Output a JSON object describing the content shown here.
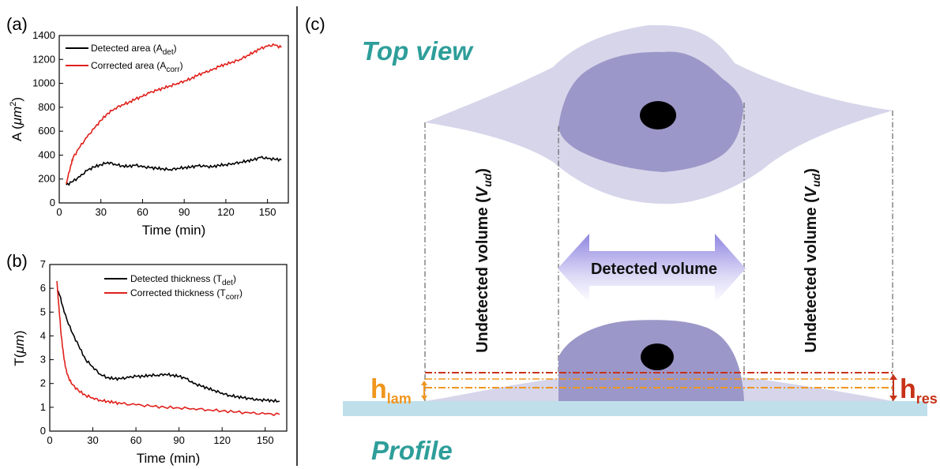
{
  "panel_a": {
    "label": "(a)",
    "chart_data": {
      "type": "line",
      "xlabel": "Time (min)",
      "ylabel_main": "A (",
      "ylabel_unit": "μm",
      "ylabel_sup": "2",
      "ylabel_close": ")",
      "xlim": [
        0,
        165
      ],
      "ylim": [
        0,
        1400
      ],
      "xticks": [
        0,
        30,
        60,
        90,
        120,
        150
      ],
      "yticks": [
        0,
        200,
        400,
        600,
        800,
        1000,
        1200,
        1400
      ],
      "legend_position": "top-left",
      "series": [
        {
          "legend_main": "Detected area (A",
          "legend_sub": "det",
          "legend_close": ")",
          "color": "#000000",
          "x": [
            5,
            10,
            15,
            20,
            25,
            30,
            35,
            40,
            45,
            50,
            55,
            60,
            65,
            70,
            75,
            80,
            85,
            90,
            95,
            100,
            105,
            110,
            115,
            120,
            125,
            130,
            135,
            140,
            145,
            150,
            155,
            160
          ],
          "values": [
            150,
            180,
            220,
            270,
            300,
            320,
            340,
            325,
            310,
            305,
            315,
            300,
            295,
            290,
            285,
            280,
            290,
            295,
            300,
            310,
            305,
            300,
            315,
            320,
            330,
            340,
            350,
            360,
            380,
            370,
            365,
            360
          ]
        },
        {
          "legend_main": "Corrected area (A",
          "legend_sub": "corr",
          "legend_close": ")",
          "color": "#e0201b",
          "x": [
            5,
            8,
            10,
            15,
            20,
            25,
            30,
            35,
            40,
            45,
            50,
            55,
            60,
            65,
            70,
            75,
            80,
            85,
            90,
            95,
            100,
            105,
            110,
            115,
            120,
            125,
            130,
            135,
            140,
            145,
            150,
            155,
            160
          ],
          "values": [
            160,
            300,
            380,
            470,
            550,
            620,
            690,
            750,
            790,
            820,
            840,
            870,
            890,
            920,
            940,
            960,
            980,
            1000,
            1020,
            1040,
            1070,
            1090,
            1110,
            1140,
            1160,
            1180,
            1200,
            1230,
            1260,
            1290,
            1310,
            1320,
            1300
          ]
        }
      ]
    }
  },
  "panel_b": {
    "label": "(b)",
    "chart_data": {
      "type": "line",
      "xlabel": "Time (min)",
      "ylabel_main": "T(",
      "ylabel_unit": "μm",
      "ylabel_close": ")",
      "xlim": [
        0,
        165
      ],
      "ylim": [
        0,
        7
      ],
      "xticks": [
        0,
        30,
        60,
        90,
        120,
        150
      ],
      "yticks": [
        0,
        1,
        2,
        3,
        4,
        5,
        6,
        7
      ],
      "legend_position": "top-right",
      "series": [
        {
          "legend_main": "Detected thickness (T",
          "legend_sub": "det",
          "legend_close": ")",
          "color": "#000000",
          "x": [
            5,
            7,
            10,
            15,
            20,
            25,
            30,
            35,
            40,
            45,
            50,
            55,
            60,
            65,
            70,
            75,
            80,
            85,
            90,
            95,
            100,
            105,
            110,
            115,
            120,
            125,
            130,
            135,
            140,
            145,
            150,
            155,
            160
          ],
          "values": [
            5.9,
            5.7,
            5.0,
            4.2,
            3.6,
            3.0,
            2.7,
            2.4,
            2.25,
            2.2,
            2.2,
            2.25,
            2.3,
            2.3,
            2.35,
            2.35,
            2.4,
            2.35,
            2.3,
            2.2,
            2.0,
            1.9,
            1.8,
            1.7,
            1.6,
            1.5,
            1.45,
            1.4,
            1.35,
            1.3,
            1.3,
            1.28,
            1.25
          ]
        },
        {
          "legend_main": "Corrected thickness (T",
          "legend_sub": "corr",
          "legend_close": ")",
          "color": "#e0201b",
          "x": [
            5,
            6,
            8,
            10,
            12,
            15,
            20,
            25,
            30,
            35,
            40,
            45,
            50,
            60,
            70,
            80,
            90,
            100,
            110,
            120,
            130,
            140,
            150,
            160
          ],
          "values": [
            6.3,
            5.5,
            4.0,
            3.0,
            2.4,
            2.0,
            1.7,
            1.5,
            1.4,
            1.3,
            1.25,
            1.2,
            1.15,
            1.1,
            1.05,
            1.0,
            0.98,
            0.95,
            0.9,
            0.85,
            0.8,
            0.75,
            0.72,
            0.7
          ]
        }
      ]
    }
  },
  "panel_c": {
    "label": "(c)",
    "top_view": "Top view",
    "profile": "Profile",
    "detected_volume": "Detected volume",
    "undetected_main": "Undetected volume (",
    "undetected_var": "V",
    "undetected_sub": "ud",
    "undetected_close": ")",
    "h_lam_main": "h",
    "h_lam_sub": "lam",
    "h_res_main": "h",
    "h_res_sub": "res",
    "colors": {
      "teal": "#2e9e9a",
      "outer_cell": "#d6d5ea",
      "inner_cell": "#9b97c8",
      "substrate": "#bfe0ea",
      "h_lam": "#f0961e",
      "h_res": "#c83218"
    }
  }
}
